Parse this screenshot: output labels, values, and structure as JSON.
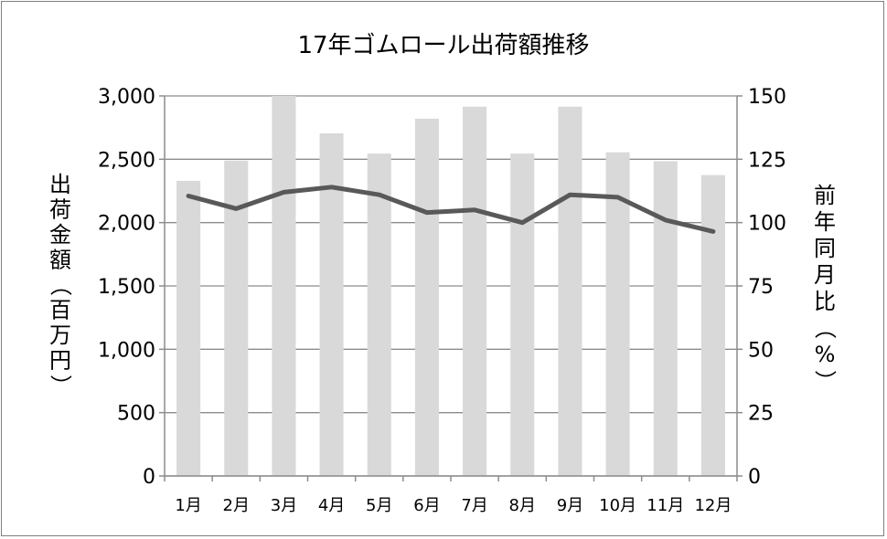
{
  "chart_data": {
    "type": "bar",
    "title": "17年ゴムロール出荷額推移",
    "categories": [
      "1月",
      "2月",
      "3月",
      "4月",
      "5月",
      "6月",
      "7月",
      "8月",
      "9月",
      "10月",
      "11月",
      "12月"
    ],
    "ylabel": "出荷金額（百万円）",
    "y2label": "前年同月比（%）",
    "ylim": [
      0,
      3000
    ],
    "y2lim": [
      0,
      150
    ],
    "yticks": [
      "0",
      "500",
      "1,000",
      "1,500",
      "2,000",
      "2,500",
      "3,000"
    ],
    "y2ticks": [
      "0",
      "25",
      "50",
      "75",
      "100",
      "125",
      "150"
    ],
    "grid": true,
    "series": [
      {
        "type": "bar",
        "axis": "left",
        "color": "#d9d9d9",
        "values": [
          2330,
          2490,
          3000,
          2705,
          2545,
          2820,
          2915,
          2545,
          2915,
          2555,
          2485,
          2375
        ]
      },
      {
        "type": "line",
        "axis": "right",
        "color": "#595959",
        "values": [
          110.5,
          105.5,
          112,
          114,
          111,
          104,
          105,
          100,
          111,
          110,
          101,
          96.5
        ]
      }
    ]
  }
}
